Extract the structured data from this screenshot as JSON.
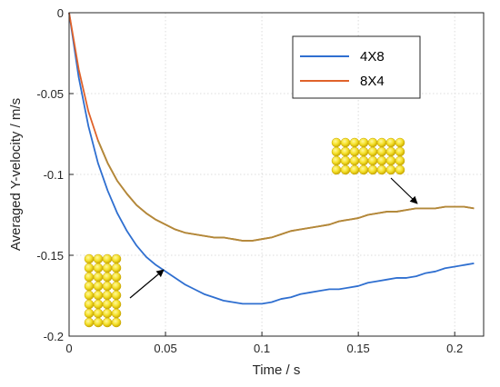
{
  "chart_data": {
    "type": "line",
    "title": "",
    "xlabel": "Time / s",
    "ylabel": "Averaged Y-velocity / m/s",
    "xlim": [
      0,
      0.215
    ],
    "ylim": [
      -0.2,
      0
    ],
    "xticks": [
      0,
      0.05,
      0.1,
      0.15,
      0.2
    ],
    "xtick_labels": [
      "0",
      "0.05",
      "0.1",
      "0.15",
      "0.2"
    ],
    "yticks": [
      0,
      -0.05,
      -0.1,
      -0.15,
      -0.2
    ],
    "ytick_labels": [
      "0",
      "-0.05",
      "-0.1",
      "-0.15",
      "-0.2"
    ],
    "grid": true,
    "legend_position": "top-right",
    "series": [
      {
        "name": "4X8",
        "color": "#2f6fd0",
        "x": [
          0,
          0.005,
          0.01,
          0.015,
          0.02,
          0.025,
          0.03,
          0.035,
          0.04,
          0.045,
          0.05,
          0.055,
          0.06,
          0.065,
          0.07,
          0.075,
          0.08,
          0.085,
          0.09,
          0.095,
          0.1,
          0.105,
          0.11,
          0.115,
          0.12,
          0.125,
          0.13,
          0.135,
          0.14,
          0.145,
          0.15,
          0.155,
          0.16,
          0.165,
          0.17,
          0.175,
          0.18,
          0.185,
          0.19,
          0.195,
          0.2,
          0.205,
          0.21
        ],
        "y": [
          0,
          -0.04,
          -0.07,
          -0.093,
          -0.11,
          -0.124,
          -0.135,
          -0.144,
          -0.151,
          -0.156,
          -0.16,
          -0.164,
          -0.168,
          -0.171,
          -0.174,
          -0.176,
          -0.178,
          -0.179,
          -0.18,
          -0.18,
          -0.18,
          -0.179,
          -0.177,
          -0.176,
          -0.174,
          -0.173,
          -0.172,
          -0.171,
          -0.171,
          -0.17,
          -0.169,
          -0.167,
          -0.166,
          -0.165,
          -0.164,
          -0.164,
          -0.163,
          -0.161,
          -0.16,
          -0.158,
          -0.157,
          -0.156,
          -0.155
        ]
      },
      {
        "name": "8X4",
        "color": "#e0622a",
        "x": [
          0,
          0.005,
          0.01,
          0.015,
          0.02,
          0.025,
          0.03,
          0.035,
          0.04,
          0.045,
          0.05,
          0.055,
          0.06,
          0.065,
          0.07,
          0.075,
          0.08,
          0.085,
          0.09,
          0.095,
          0.1,
          0.105,
          0.11,
          0.115,
          0.12,
          0.125,
          0.13,
          0.135,
          0.14,
          0.145,
          0.15,
          0.155,
          0.16,
          0.165,
          0.17,
          0.175,
          0.18,
          0.185,
          0.19,
          0.195,
          0.2,
          0.205,
          0.21
        ],
        "y": [
          0,
          -0.035,
          -0.061,
          -0.079,
          -0.093,
          -0.104,
          -0.112,
          -0.119,
          -0.124,
          -0.128,
          -0.131,
          -0.134,
          -0.136,
          -0.137,
          -0.138,
          -0.139,
          -0.139,
          -0.14,
          -0.141,
          -0.141,
          -0.14,
          -0.139,
          -0.137,
          -0.135,
          -0.134,
          -0.133,
          -0.132,
          -0.131,
          -0.129,
          -0.128,
          -0.127,
          -0.125,
          -0.124,
          -0.123,
          -0.123,
          -0.122,
          -0.121,
          -0.121,
          -0.121,
          -0.12,
          -0.12,
          -0.12,
          -0.121
        ]
      }
    ],
    "overlap_color": "#b08a3a",
    "annotations": [
      {
        "name": "4X8-particle-grid",
        "cols": 4,
        "rows": 8,
        "color": "#f5e12a",
        "label_series": "4X8"
      },
      {
        "name": "8X4-particle-grid",
        "cols": 8,
        "rows": 4,
        "color": "#f5e12a",
        "label_series": "8X4"
      }
    ]
  }
}
